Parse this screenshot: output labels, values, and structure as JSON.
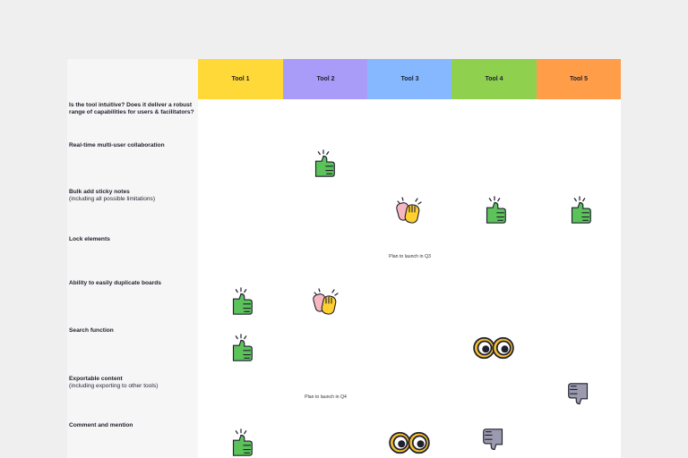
{
  "table": {
    "columns": [
      "Tool 1",
      "Tool 2",
      "Tool 3",
      "Tool 4",
      "Tool 5"
    ],
    "rows": [
      {
        "title": "Is the tool intuitive? Does it deliver a robust range of capabilities for users & facilitators?"
      },
      {
        "title": "Real-time multi-user collaboration"
      },
      {
        "title": "Bulk add sticky notes",
        "subtitle": "(including all possible limitations)"
      },
      {
        "title": "Lock elements",
        "note": "Plan to launch in Q3"
      },
      {
        "title": "Ability to easily duplicate boards"
      },
      {
        "title": "Search function"
      },
      {
        "title": "Exportable content",
        "subtitle": "(including exporting to other tools)",
        "note": "Plan to launch in Q4"
      },
      {
        "title": "Comment and mention"
      }
    ]
  }
}
